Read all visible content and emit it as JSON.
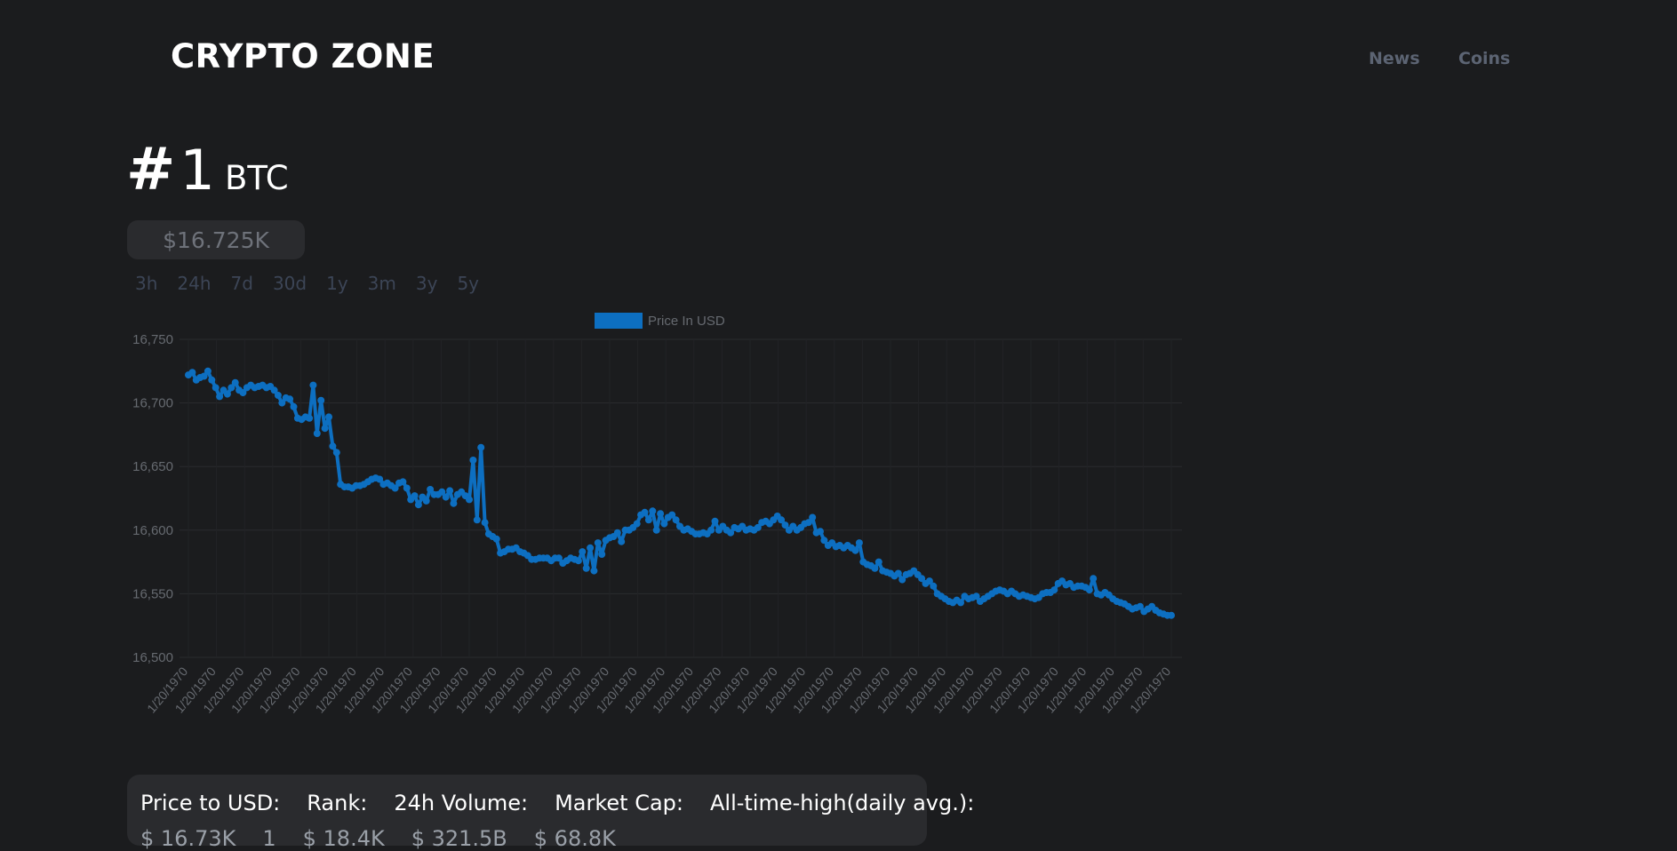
{
  "header": {
    "brand": "CRYPTO ZONE",
    "nav": [
      "News",
      "Coins"
    ]
  },
  "coin": {
    "rank_prefix": "#",
    "rank": "1",
    "symbol": "BTC",
    "price": "$16.725K"
  },
  "ranges": [
    "3h",
    "24h",
    "7d",
    "30d",
    "1y",
    "3m",
    "3y",
    "5y"
  ],
  "stats": {
    "labels": [
      "Price to USD:",
      "Rank:",
      "24h Volume:",
      "Market Cap:",
      "All-time-high(daily avg.):"
    ],
    "values": [
      "$ 16.73K",
      "1",
      "$ 18.4K",
      "$ 321.5B",
      "$ 68.8K"
    ]
  },
  "chart_data": {
    "type": "line",
    "legend": "Price In USD",
    "legend_position": "top",
    "color": "#0d6fc1",
    "grid": true,
    "ylim": [
      16500,
      16750
    ],
    "yticks": [
      "16,750",
      "16,700",
      "16,650",
      "16,600",
      "16,550",
      "16,500"
    ],
    "xtick_label": "1/20/1970",
    "xtick_count": 36,
    "values": [
      16722,
      16724,
      16718,
      16720,
      16721,
      16725,
      16718,
      16712,
      16705,
      16710,
      16707,
      16712,
      16716,
      16710,
      16708,
      16712,
      16714,
      16712,
      16713,
      16714,
      16712,
      16713,
      16710,
      16706,
      16700,
      16704,
      16703,
      16697,
      16688,
      16687,
      16689,
      16688,
      16714,
      16676,
      16702,
      16680,
      16689,
      16666,
      16661,
      16636,
      16634,
      16634,
      16633,
      16635,
      16635,
      16636,
      16638,
      16640,
      16641,
      16640,
      16636,
      16637,
      16635,
      16633,
      16637,
      16638,
      16633,
      16624,
      16627,
      16620,
      16626,
      16623,
      16632,
      16628,
      16628,
      16630,
      16626,
      16631,
      16621,
      16628,
      16630,
      16627,
      16624,
      16655,
      16608,
      16665,
      16606,
      16597,
      16595,
      16593,
      16582,
      16583,
      16585,
      16585,
      16586,
      16583,
      16582,
      16580,
      16577,
      16577,
      16578,
      16578,
      16578,
      16576,
      16578,
      16578,
      16574,
      16576,
      16578,
      16577,
      16576,
      16583,
      16570,
      16586,
      16568,
      16590,
      16581,
      16592,
      16594,
      16595,
      16598,
      16591,
      16600,
      16600,
      16602,
      16605,
      16612,
      16614,
      16608,
      16615,
      16600,
      16613,
      16605,
      16610,
      16612,
      16608,
      16603,
      16600,
      16601,
      16599,
      16597,
      16597,
      16598,
      16597,
      16600,
      16607,
      16600,
      16603,
      16600,
      16598,
      16602,
      16601,
      16603,
      16600,
      16601,
      16600,
      16602,
      16606,
      16607,
      16605,
      16608,
      16611,
      16608,
      16604,
      16600,
      16603,
      16600,
      16602,
      16605,
      16606,
      16610,
      16598,
      16599,
      16592,
      16588,
      16590,
      16587,
      16588,
      16586,
      16588,
      16586,
      16584,
      16590,
      16575,
      16573,
      16572,
      16570,
      16575,
      16568,
      16567,
      16566,
      16564,
      16566,
      16561,
      16565,
      16566,
      16568,
      16565,
      16562,
      16558,
      16560,
      16556,
      16550,
      16548,
      16546,
      16544,
      16543,
      16545,
      16543,
      16548,
      16546,
      16547,
      16548,
      16544,
      16546,
      16548,
      16550,
      16552,
      16553,
      16552,
      16550,
      16552,
      16550,
      16548,
      16549,
      16548,
      16547,
      16546,
      16547,
      16550,
      16551,
      16551,
      16553,
      16558,
      16560,
      16557,
      16558,
      16555,
      16556,
      16556,
      16555,
      16553,
      16562,
      16550,
      16549,
      16551,
      16549,
      16546,
      16544,
      16543,
      16542,
      16540,
      16538,
      16539,
      16540,
      16536,
      16538,
      16540,
      16537,
      16535,
      16534,
      16533,
      16533
    ]
  }
}
